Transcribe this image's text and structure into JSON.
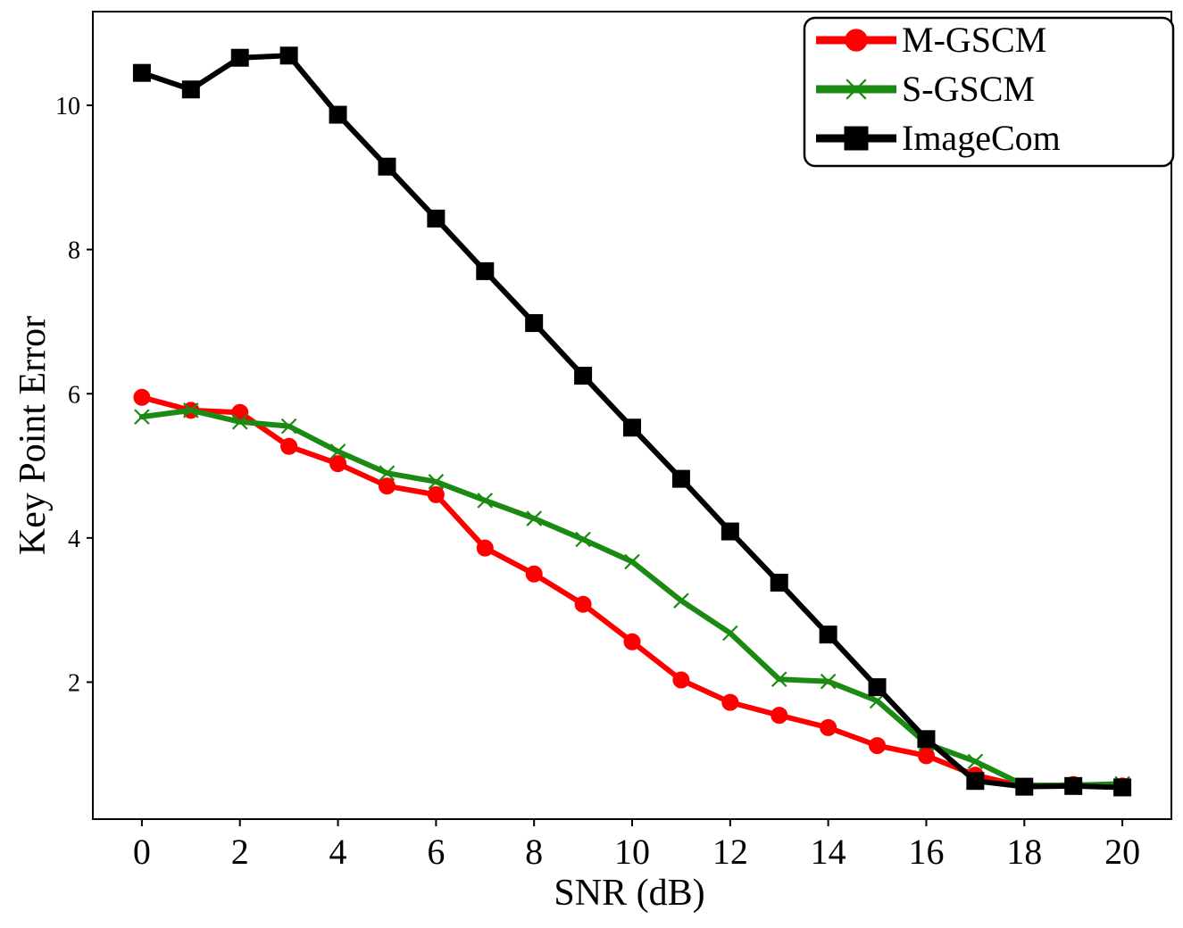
{
  "chart_data": {
    "type": "line",
    "title": "",
    "xlabel": "SNR (dB)",
    "ylabel": "Key Point Error",
    "x": [
      0,
      1,
      2,
      3,
      4,
      5,
      6,
      7,
      8,
      9,
      10,
      11,
      12,
      13,
      14,
      15,
      16,
      17,
      18,
      19,
      20
    ],
    "xticks": [
      0,
      2,
      4,
      6,
      8,
      10,
      12,
      14,
      16,
      18,
      20
    ],
    "xtick_labels": [
      "0",
      "2",
      "4",
      "6",
      "8",
      "10",
      "12",
      "14",
      "16",
      "18",
      "20"
    ],
    "yticks": [
      2,
      4,
      6,
      8,
      10
    ],
    "ytick_labels": [
      "2",
      "4",
      "6",
      "8",
      "10"
    ],
    "xlim": [
      -1,
      21
    ],
    "ylim": [
      0.1,
      11.3
    ],
    "grid": false,
    "legend_position": "top-right",
    "series": [
      {
        "name": "M-GSCM",
        "color": "#ff0000",
        "marker": "circle",
        "values": [
          5.95,
          5.77,
          5.74,
          5.27,
          5.03,
          4.72,
          4.6,
          3.86,
          3.5,
          3.08,
          2.56,
          2.03,
          1.72,
          1.54,
          1.37,
          1.12,
          0.98,
          0.71,
          0.55,
          0.58,
          0.56
        ]
      },
      {
        "name": "S-GSCM",
        "color": "#1a8a12",
        "marker": "x",
        "values": [
          5.68,
          5.77,
          5.61,
          5.55,
          5.2,
          4.9,
          4.78,
          4.52,
          4.27,
          3.98,
          3.67,
          3.13,
          2.68,
          2.04,
          2.01,
          1.74,
          1.15,
          0.9,
          0.57,
          0.57,
          0.59
        ]
      },
      {
        "name": "ImageCom",
        "color": "#000000",
        "marker": "square",
        "values": [
          10.45,
          10.22,
          10.66,
          10.69,
          9.87,
          9.15,
          8.43,
          7.7,
          6.98,
          6.25,
          5.53,
          4.82,
          4.09,
          3.38,
          2.66,
          1.93,
          1.21,
          0.63,
          0.55,
          0.56,
          0.54
        ]
      }
    ]
  }
}
